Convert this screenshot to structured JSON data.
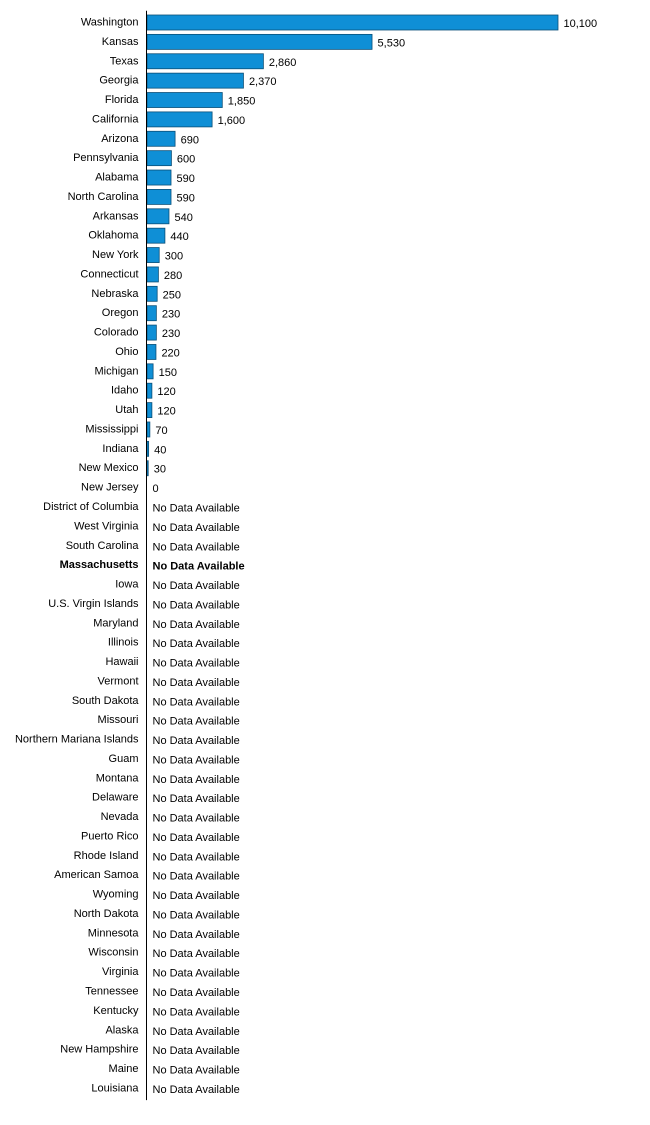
{
  "chart_data": {
    "type": "bar",
    "orientation": "horizontal",
    "title": "",
    "xlabel": "",
    "ylabel": "",
    "xlim": [
      0,
      10100
    ],
    "bar_color": "#0f8fd6",
    "bar_edge_color": "#0a4f78",
    "highlight_category": "Massachusetts",
    "missing_label": "No Data Available",
    "categories": [
      "Washington",
      "Kansas",
      "Texas",
      "Georgia",
      "Florida",
      "California",
      "Arizona",
      "Pennsylvania",
      "Alabama",
      "North Carolina",
      "Arkansas",
      "Oklahoma",
      "New York",
      "Connecticut",
      "Nebraska",
      "Oregon",
      "Colorado",
      "Ohio",
      "Michigan",
      "Idaho",
      "Utah",
      "Mississippi",
      "Indiana",
      "New Mexico",
      "New Jersey",
      "District of Columbia",
      "West Virginia",
      "South Carolina",
      "Massachusetts",
      "Iowa",
      "U.S. Virgin Islands",
      "Maryland",
      "Illinois",
      "Hawaii",
      "Vermont",
      "South Dakota",
      "Missouri",
      "Northern Mariana Islands",
      "Guam",
      "Montana",
      "Delaware",
      "Nevada",
      "Puerto Rico",
      "Rhode Island",
      "American Samoa",
      "Wyoming",
      "North Dakota",
      "Minnesota",
      "Wisconsin",
      "Virginia",
      "Tennessee",
      "Kentucky",
      "Alaska",
      "New Hampshire",
      "Maine",
      "Louisiana"
    ],
    "values": [
      10100,
      5530,
      2860,
      2370,
      1850,
      1600,
      690,
      600,
      590,
      590,
      540,
      440,
      300,
      280,
      250,
      230,
      230,
      220,
      150,
      120,
      120,
      70,
      40,
      30,
      0,
      null,
      null,
      null,
      null,
      null,
      null,
      null,
      null,
      null,
      null,
      null,
      null,
      null,
      null,
      null,
      null,
      null,
      null,
      null,
      null,
      null,
      null,
      null,
      null,
      null,
      null,
      null,
      null,
      null,
      null,
      null
    ],
    "value_labels": [
      "10,100",
      "5,530",
      "2,860",
      "2,370",
      "1,850",
      "1,600",
      "690",
      "600",
      "590",
      "590",
      "540",
      "440",
      "300",
      "280",
      "250",
      "230",
      "230",
      "220",
      "150",
      "120",
      "120",
      "70",
      "40",
      "30",
      "0",
      "No Data Available",
      "No Data Available",
      "No Data Available",
      "No Data Available",
      "No Data Available",
      "No Data Available",
      "No Data Available",
      "No Data Available",
      "No Data Available",
      "No Data Available",
      "No Data Available",
      "No Data Available",
      "No Data Available",
      "No Data Available",
      "No Data Available",
      "No Data Available",
      "No Data Available",
      "No Data Available",
      "No Data Available",
      "No Data Available",
      "No Data Available",
      "No Data Available",
      "No Data Available",
      "No Data Available",
      "No Data Available",
      "No Data Available",
      "No Data Available",
      "No Data Available",
      "No Data Available",
      "No Data Available",
      "No Data Available"
    ]
  }
}
